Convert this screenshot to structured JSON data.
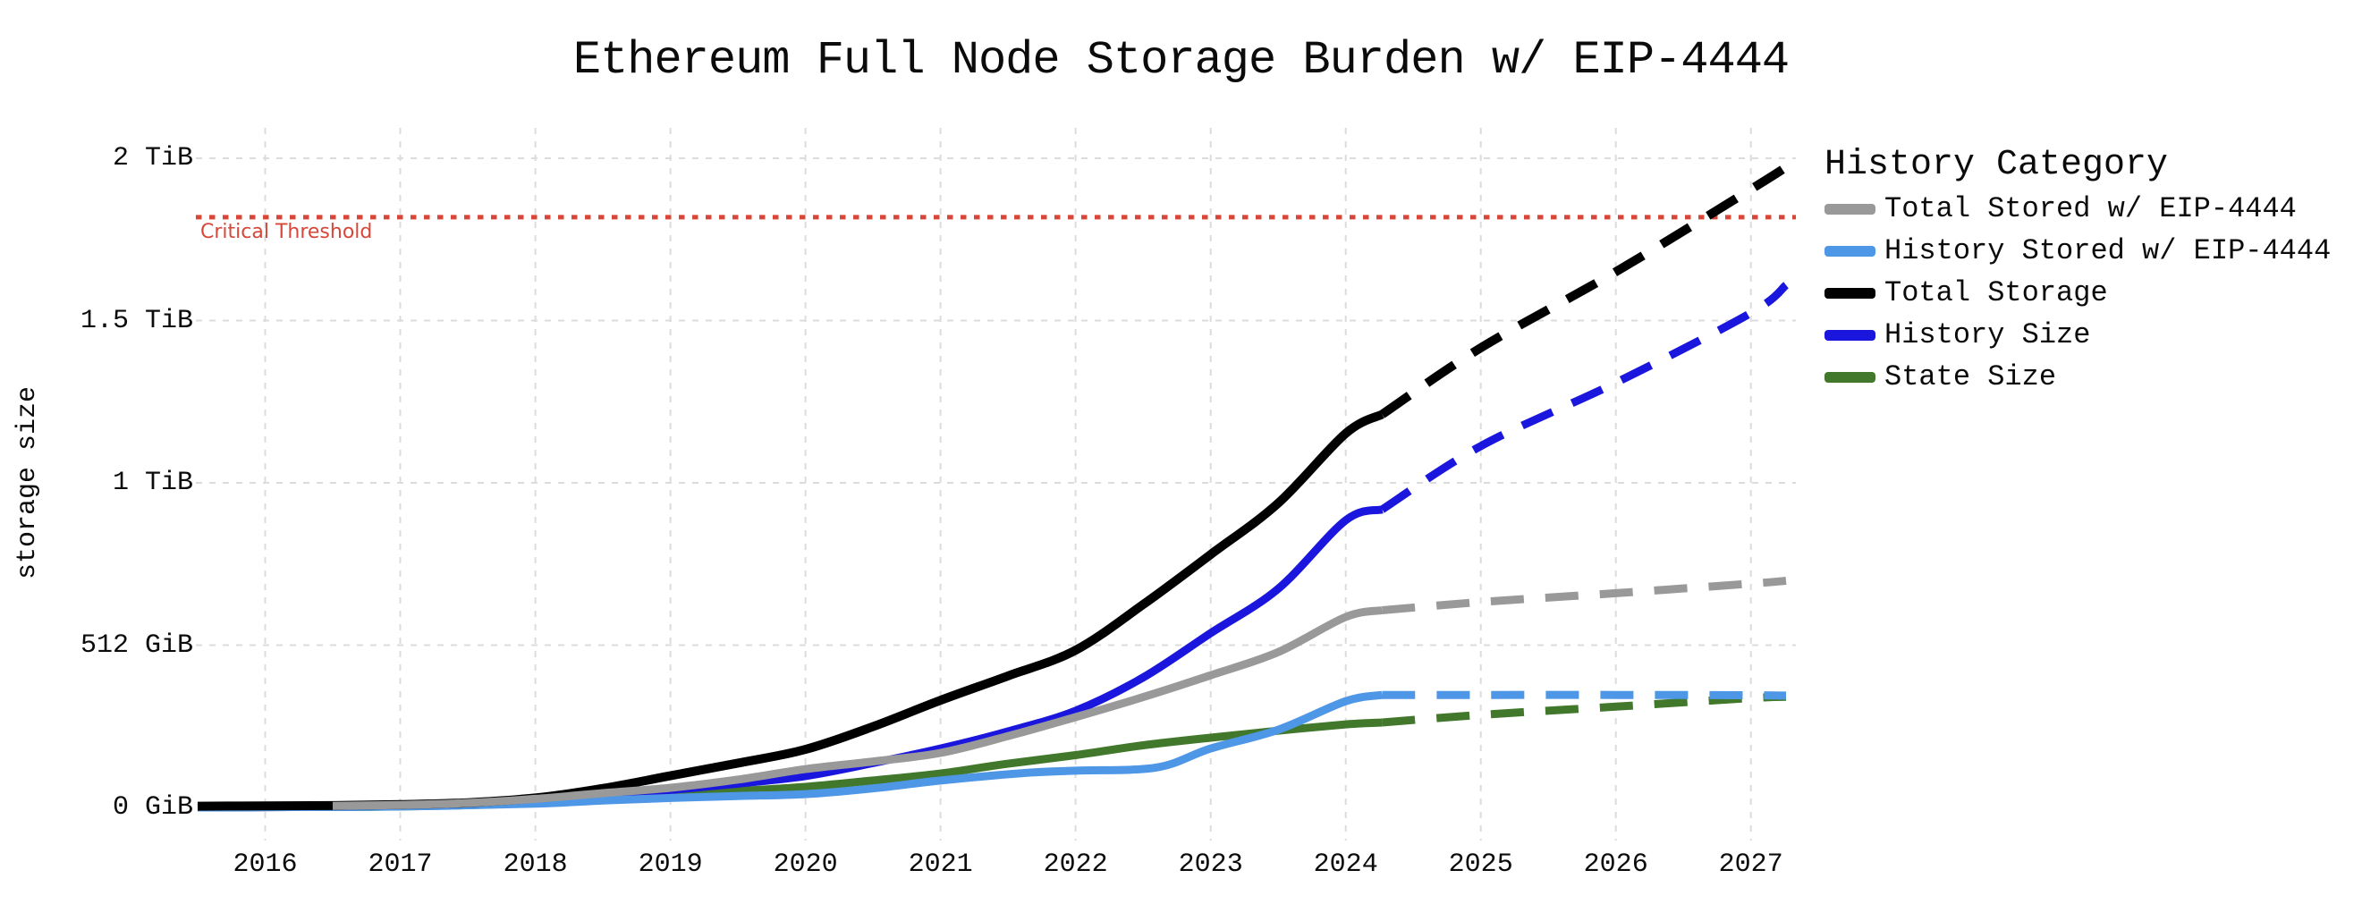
{
  "title": "Ethereum Full Node Storage Burden w/ EIP-4444",
  "axes": {
    "y_label": "storage size",
    "y_ticks": [
      {
        "gib": 2048,
        "label": "2 TiB"
      },
      {
        "gib": 1536,
        "label": "1.5 TiB"
      },
      {
        "gib": 1024,
        "label": "1 TiB"
      },
      {
        "gib": 512,
        "label": "512 GiB"
      },
      {
        "gib": 0,
        "label": "0 GiB"
      }
    ]
  },
  "legend": {
    "title": "History Category"
  },
  "chart_data": {
    "type": "line",
    "title": "Ethereum Full Node Storage Burden w/ EIP-4444",
    "xlabel": "",
    "ylabel": "storage size",
    "x_domain": [
      2015.5,
      2027.26
    ],
    "ylim_gib": [
      0,
      2048
    ],
    "x_tick_years": [
      2016,
      2017,
      2018,
      2019,
      2020,
      2021,
      2022,
      2023,
      2024,
      2025,
      2026,
      2027
    ],
    "grid": true,
    "legend_position": "right",
    "projection_start_year": 2024.27,
    "threshold": {
      "label": "Critical Threshold",
      "value_gib": 1862,
      "line_color": "#d6473a",
      "label_color": "#d6473a"
    },
    "series": [
      {
        "name": "Total Stored w/ EIP-4444",
        "color": "#999999",
        "z": 5,
        "points": [
          [
            2016.5,
            5
          ],
          [
            2017,
            8
          ],
          [
            2017.5,
            14
          ],
          [
            2018,
            27
          ],
          [
            2018.5,
            45
          ],
          [
            2019,
            62
          ],
          [
            2019.5,
            88
          ],
          [
            2020,
            121
          ],
          [
            2020.5,
            145
          ],
          [
            2021,
            172
          ],
          [
            2021.5,
            225
          ],
          [
            2022,
            285
          ],
          [
            2022.5,
            348
          ],
          [
            2023,
            417
          ],
          [
            2023.5,
            490
          ],
          [
            2024,
            601
          ],
          [
            2024.27,
            622
          ],
          [
            2025,
            648
          ],
          [
            2026,
            676
          ],
          [
            2027,
            706
          ],
          [
            2027.26,
            715
          ]
        ]
      },
      {
        "name": "History Stored w/ EIP-4444",
        "color": "#4e97e7",
        "z": 3,
        "points": [
          [
            2015.5,
            0
          ],
          [
            2016,
            1
          ],
          [
            2017,
            3
          ],
          [
            2018,
            12
          ],
          [
            2018.5,
            22
          ],
          [
            2019,
            30
          ],
          [
            2019.5,
            36
          ],
          [
            2020,
            42
          ],
          [
            2020.5,
            60
          ],
          [
            2021,
            85
          ],
          [
            2021.6,
            108
          ],
          [
            2022,
            116
          ],
          [
            2022.6,
            126
          ],
          [
            2023,
            186
          ],
          [
            2023.5,
            245
          ],
          [
            2024,
            335
          ],
          [
            2024.27,
            355
          ],
          [
            2025,
            355
          ],
          [
            2026,
            355
          ],
          [
            2027,
            354
          ],
          [
            2027.26,
            353
          ]
        ]
      },
      {
        "name": "Total Storage",
        "color": "#000000",
        "z": 4,
        "points": [
          [
            2015.5,
            4
          ],
          [
            2016,
            5
          ],
          [
            2016.5,
            6
          ],
          [
            2017,
            9
          ],
          [
            2017.5,
            15
          ],
          [
            2018,
            30
          ],
          [
            2018.5,
            60
          ],
          [
            2019,
            100
          ],
          [
            2019.5,
            140
          ],
          [
            2020,
            183
          ],
          [
            2020.5,
            255
          ],
          [
            2021,
            338
          ],
          [
            2021.5,
            415
          ],
          [
            2022,
            496
          ],
          [
            2022.5,
            640
          ],
          [
            2023,
            798
          ],
          [
            2023.5,
            960
          ],
          [
            2024,
            1180
          ],
          [
            2024.27,
            1240
          ],
          [
            2025,
            1450
          ],
          [
            2026,
            1690
          ],
          [
            2027,
            1950
          ],
          [
            2027.26,
            2020
          ]
        ]
      },
      {
        "name": "History Size",
        "color": "#1a16dd",
        "z": 2,
        "points": [
          [
            2015.5,
            0
          ],
          [
            2016,
            1
          ],
          [
            2016.5,
            2
          ],
          [
            2017,
            4
          ],
          [
            2017.5,
            9
          ],
          [
            2018,
            18
          ],
          [
            2018.5,
            35
          ],
          [
            2019,
            55
          ],
          [
            2019.5,
            75
          ],
          [
            2020,
            99
          ],
          [
            2020.5,
            140
          ],
          [
            2021,
            186
          ],
          [
            2021.5,
            240
          ],
          [
            2022,
            305
          ],
          [
            2022.5,
            410
          ],
          [
            2023,
            550
          ],
          [
            2023.5,
            690
          ],
          [
            2024,
            906
          ],
          [
            2024.27,
            940
          ],
          [
            2025,
            1140
          ],
          [
            2026,
            1340
          ],
          [
            2027,
            1560
          ],
          [
            2027.26,
            1648
          ]
        ]
      },
      {
        "name": "State Size",
        "color": "#41782b",
        "z": 1,
        "points": [
          [
            2015.5,
            0
          ],
          [
            2016,
            1
          ],
          [
            2017,
            3
          ],
          [
            2018,
            14
          ],
          [
            2018.5,
            26
          ],
          [
            2019,
            40
          ],
          [
            2019.5,
            52
          ],
          [
            2020,
            65
          ],
          [
            2020.5,
            85
          ],
          [
            2021,
            107
          ],
          [
            2021.5,
            138
          ],
          [
            2022,
            165
          ],
          [
            2022.5,
            196
          ],
          [
            2023,
            220
          ],
          [
            2023.5,
            242
          ],
          [
            2024,
            262
          ],
          [
            2024.27,
            268
          ],
          [
            2025,
            292
          ],
          [
            2026,
            318
          ],
          [
            2027,
            345
          ],
          [
            2027.26,
            349
          ]
        ]
      }
    ]
  }
}
